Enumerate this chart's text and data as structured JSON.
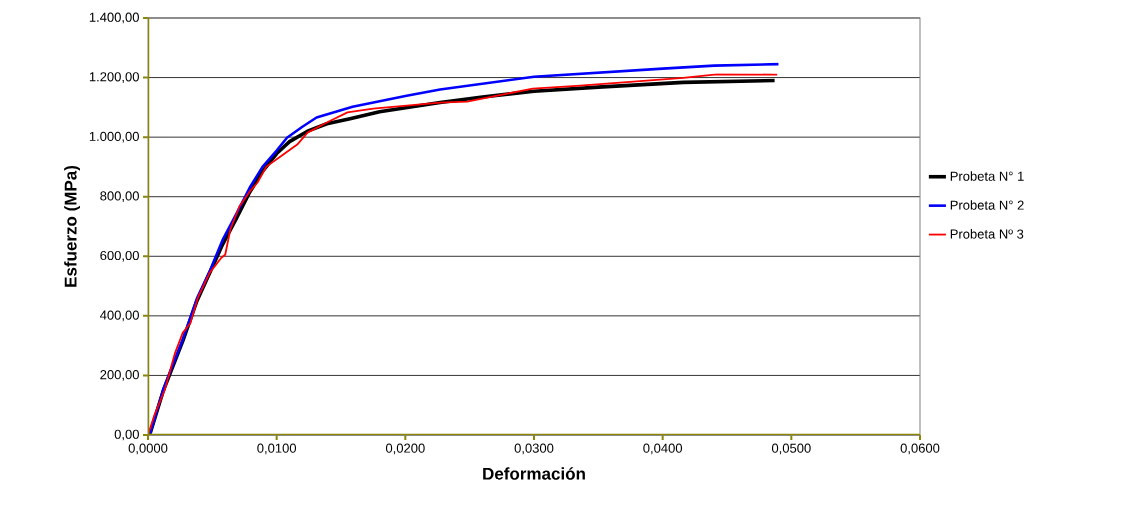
{
  "chart_data": {
    "type": "line",
    "xlabel": "Deformación",
    "ylabel": "Esfuerzo (MPa)",
    "xlim": [
      0,
      0.06
    ],
    "ylim": [
      0,
      1400
    ],
    "xticks": [
      {
        "value": 0,
        "label": "0,0000"
      },
      {
        "value": 0.01,
        "label": "0,0100"
      },
      {
        "value": 0.02,
        "label": "0,0200"
      },
      {
        "value": 0.03,
        "label": "0,0300"
      },
      {
        "value": 0.04,
        "label": "0,0400"
      },
      {
        "value": 0.05,
        "label": "0,0500"
      },
      {
        "value": 0.06,
        "label": "0,0600"
      }
    ],
    "yticks": [
      {
        "value": 0,
        "label": "0,00"
      },
      {
        "value": 200,
        "label": "200,00"
      },
      {
        "value": 400,
        "label": "400,00"
      },
      {
        "value": 600,
        "label": "600,00"
      },
      {
        "value": 800,
        "label": "800,00"
      },
      {
        "value": 1000,
        "label": "1.000,00"
      },
      {
        "value": 1200,
        "label": "1.200,00"
      },
      {
        "value": 1400,
        "label": "1.400,00"
      }
    ],
    "grid": "y",
    "legend": "right",
    "marker": "none",
    "line_style": "solid",
    "series": [
      {
        "name": "Probeta N° 1",
        "color": "#000000",
        "x": [
          0,
          0.0002,
          0.0012,
          0.0027,
          0.0038,
          0.0048,
          0.0058,
          0.0069,
          0.0079,
          0.0089,
          0.01,
          0.011,
          0.0124,
          0.0139,
          0.0157,
          0.018,
          0.0227,
          0.026,
          0.03,
          0.035,
          0.0416,
          0.0487
        ],
        "values": [
          0,
          10,
          150,
          315,
          450,
          545,
          640,
          730,
          815,
          885,
          945,
          985,
          1020,
          1045,
          1062,
          1085,
          1116,
          1135,
          1154,
          1168,
          1184,
          1190
        ]
      },
      {
        "name": "Probeta N° 2",
        "color": "#0000ff",
        "x": [
          0,
          0.0002,
          0.0012,
          0.0027,
          0.0038,
          0.0048,
          0.0058,
          0.0069,
          0.0079,
          0.0089,
          0.01,
          0.0108,
          0.012,
          0.0131,
          0.0159,
          0.0201,
          0.0227,
          0.03,
          0.04,
          0.044,
          0.049
        ],
        "values": [
          0,
          10,
          155,
          320,
          458,
          550,
          655,
          745,
          830,
          900,
          955,
          998,
          1035,
          1066,
          1102,
          1139,
          1160,
          1203,
          1230,
          1240,
          1245
        ]
      },
      {
        "name": "Probeta Nº 3",
        "color": "#ff0000",
        "x": [
          0,
          0.0005,
          0.0013,
          0.0021,
          0.0027,
          0.0033,
          0.0039,
          0.0048,
          0.0057,
          0.006,
          0.0064,
          0.0071,
          0.0079,
          0.0085,
          0.0092,
          0.0103,
          0.0116,
          0.0124,
          0.0139,
          0.0155,
          0.0175,
          0.0227,
          0.0248,
          0.0299,
          0.0336,
          0.0416,
          0.0442,
          0.0489
        ],
        "values": [
          0,
          67,
          151,
          275,
          343,
          376,
          464,
          545,
          595,
          605,
          690,
          767,
          817,
          847,
          901,
          935,
          975,
          1015,
          1049,
          1083,
          1096,
          1116,
          1119,
          1163,
          1173,
          1199,
          1211,
          1210
        ]
      }
    ]
  }
}
